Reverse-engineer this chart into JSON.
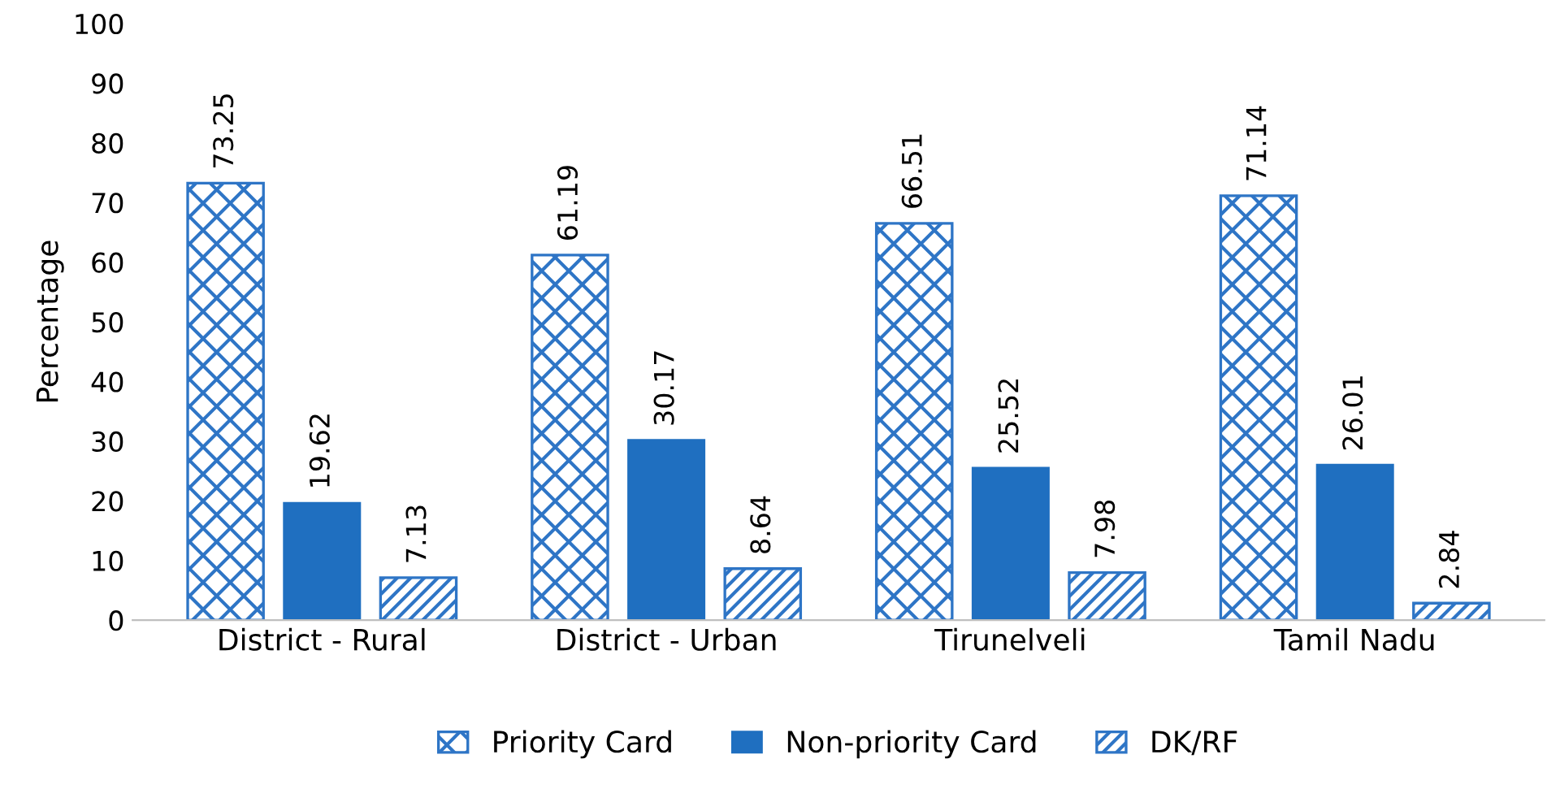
{
  "chart_data": {
    "type": "bar",
    "ylabel": "Percentage",
    "categories": [
      "District - Rural",
      "District - Urban",
      "Tirunelveli",
      "Tamil Nadu"
    ],
    "series": [
      {
        "name": "Priority Card",
        "color": "#2e75c6",
        "values": [
          73.25,
          61.19,
          66.51,
          71.14
        ]
      },
      {
        "name": "Non-priority Card",
        "color": "#1f6fc0",
        "values": [
          19.62,
          30.17,
          25.52,
          26.01
        ]
      },
      {
        "name": "DK/RF",
        "color": "#2e75c6",
        "values": [
          7.13,
          8.64,
          7.98,
          2.84
        ]
      }
    ],
    "ylim": [
      0,
      100
    ],
    "yticks": [
      0,
      10,
      20,
      30,
      40,
      50,
      60,
      70,
      80,
      90,
      100
    ],
    "data_labels": true,
    "grid": false,
    "legend": "bottom"
  }
}
